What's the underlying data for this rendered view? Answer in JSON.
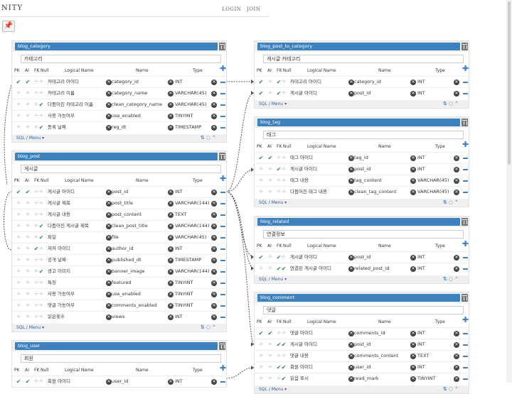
{
  "nav": {
    "brand": "NITY",
    "login": "LOGIN",
    "join": "JOIN"
  },
  "icons": {
    "pin": "pin-icon",
    "delete": "trash-icon",
    "remove": "close-icon",
    "add_column": "plus-icon",
    "remove_column": "minus-icon",
    "sort": "sort-icon",
    "comment": "comment-icon",
    "collapse": "chevron-up-icon",
    "check": "check-icon"
  },
  "colors": {
    "header": "#3d82c0",
    "check": "#2a8a4a",
    "link_text": "#2b5fa8"
  },
  "column_headers": {
    "pk": "PK",
    "ai": "AI",
    "fk": "FK",
    "nul": "Null",
    "logical": "Logical Name",
    "name": "Name",
    "type": "Type"
  },
  "footer": {
    "sql_menu": "SQL / Menu ▾"
  },
  "tables": [
    {
      "id": "blog_category",
      "title": "blog_category",
      "comment": "카테고리",
      "rows": [
        {
          "pk": true,
          "ai": true,
          "fk": false,
          "nul": false,
          "logical": "카테고리 아이디",
          "name": "category_id",
          "type": "INT"
        },
        {
          "pk": false,
          "ai": false,
          "fk": false,
          "nul": false,
          "logical": "카테고리 이름",
          "name": "category_name",
          "type": "VARCHAR(45)"
        },
        {
          "pk": false,
          "ai": false,
          "fk": false,
          "nul": true,
          "logical": "다듬어진 카테고리 이름",
          "name": "clean_category_name",
          "type": "VARCHAR(45)"
        },
        {
          "pk": false,
          "ai": false,
          "fk": false,
          "nul": false,
          "logical": "사용 가능여부",
          "name": "use_enabled",
          "type": "TINYINT"
        },
        {
          "pk": false,
          "ai": false,
          "fk": false,
          "nul": true,
          "logical": "등록 날짜",
          "name": "reg_dt",
          "type": "TIMESTAMP"
        }
      ]
    },
    {
      "id": "blog_post",
      "title": "blog_post",
      "comment": "게시글",
      "rows": [
        {
          "pk": true,
          "ai": true,
          "fk": false,
          "nul": false,
          "logical": "게시글 아이디",
          "name": "post_id",
          "type": "INT"
        },
        {
          "pk": false,
          "ai": false,
          "fk": false,
          "nul": false,
          "logical": "게시글 제목",
          "name": "post_title",
          "type": "VARCHAR(144)"
        },
        {
          "pk": false,
          "ai": false,
          "fk": false,
          "nul": false,
          "logical": "게시글 내용",
          "name": "post_content",
          "type": "TEXT"
        },
        {
          "pk": false,
          "ai": false,
          "fk": false,
          "nul": true,
          "logical": "다듬어진 게시글 제목",
          "name": "clean_post_title",
          "type": "VARCHAR(144)"
        },
        {
          "pk": false,
          "ai": false,
          "fk": false,
          "nul": true,
          "logical": "파일",
          "name": "file",
          "type": "VARCHAR(45)"
        },
        {
          "pk": false,
          "ai": false,
          "fk": true,
          "nul": false,
          "logical": "저자 아이디",
          "name": "author_id",
          "type": "INT"
        },
        {
          "pk": false,
          "ai": false,
          "fk": false,
          "nul": false,
          "logical": "공개 날짜",
          "name": "published_dt",
          "type": "TIMESTAMP"
        },
        {
          "pk": false,
          "ai": false,
          "fk": false,
          "nul": true,
          "logical": "광고 이미지",
          "name": "banner_image",
          "type": "VARCHAR(144)"
        },
        {
          "pk": false,
          "ai": false,
          "fk": false,
          "nul": false,
          "logical": "특징",
          "name": "featured",
          "type": "TINYINT"
        },
        {
          "pk": false,
          "ai": false,
          "fk": false,
          "nul": false,
          "logical": "사용 가능여부",
          "name": "use_enabled",
          "type": "TINYINT"
        },
        {
          "pk": false,
          "ai": false,
          "fk": false,
          "nul": false,
          "logical": "댓글 가능여부",
          "name": "comments_enabled",
          "type": "TINYINT"
        },
        {
          "pk": false,
          "ai": false,
          "fk": false,
          "nul": false,
          "logical": "읽은횟수",
          "name": "views",
          "type": "INT"
        }
      ]
    },
    {
      "id": "blog_user",
      "title": "blog_user",
      "comment": "회원",
      "rows": [
        {
          "pk": true,
          "ai": true,
          "fk": false,
          "nul": false,
          "logical": "회원 아이디",
          "name": "user_id",
          "type": "INT"
        }
      ]
    },
    {
      "id": "blog_post_to_category",
      "title": "blog_post_to_category",
      "comment": "게시글 카테고리",
      "rows": [
        {
          "pk": true,
          "ai": false,
          "fk": true,
          "nul": false,
          "logical": "카테고리 아이디",
          "name": "category_id",
          "type": "INT"
        },
        {
          "pk": true,
          "ai": false,
          "fk": true,
          "nul": false,
          "logical": "게시글 아이디",
          "name": "post_id",
          "type": "INT"
        }
      ]
    },
    {
      "id": "blog_tag",
      "title": "blog_tag",
      "comment": "태그",
      "rows": [
        {
          "pk": true,
          "ai": true,
          "fk": false,
          "nul": false,
          "logical": "태그 아이디",
          "name": "tag_id",
          "type": "INT"
        },
        {
          "pk": false,
          "ai": false,
          "fk": true,
          "nul": false,
          "logical": "게시글 아이디",
          "name": "post_id",
          "type": "INT"
        },
        {
          "pk": false,
          "ai": false,
          "fk": false,
          "nul": false,
          "logical": "태그 내용",
          "name": "tag_content",
          "type": "VARCHAR(45)"
        },
        {
          "pk": false,
          "ai": false,
          "fk": false,
          "nul": false,
          "logical": "다듬어진 태그 내용",
          "name": "clean_tag_content",
          "type": "VARCHAR(45)"
        }
      ]
    },
    {
      "id": "blog_related",
      "title": "blog_related",
      "comment": "연결정보",
      "rows": [
        {
          "pk": true,
          "ai": false,
          "fk": true,
          "nul": false,
          "logical": "게시글 아이디",
          "name": "post_id",
          "type": "INT"
        },
        {
          "pk": false,
          "ai": false,
          "fk": true,
          "nul": true,
          "logical": "연결된 게시글 아이디",
          "name": "related_post_id",
          "type": "INT"
        }
      ]
    },
    {
      "id": "blog_comment",
      "title": "blog_comment",
      "comment": "댓글",
      "rows": [
        {
          "pk": true,
          "ai": true,
          "fk": false,
          "nul": false,
          "logical": "댓글 아이디",
          "name": "comments_id",
          "type": "INT"
        },
        {
          "pk": false,
          "ai": false,
          "fk": true,
          "nul": true,
          "logical": "게시글 아이디",
          "name": "post_id",
          "type": "INT"
        },
        {
          "pk": false,
          "ai": false,
          "fk": false,
          "nul": false,
          "logical": "댓글 내용",
          "name": "comments_content",
          "type": "TEXT"
        },
        {
          "pk": false,
          "ai": false,
          "fk": true,
          "nul": true,
          "logical": "회원 아이디",
          "name": "user_id",
          "type": "INT"
        },
        {
          "pk": false,
          "ai": false,
          "fk": false,
          "nul": true,
          "logical": "읽음 표시",
          "name": "read_mark",
          "type": "TINYINT"
        }
      ]
    }
  ]
}
